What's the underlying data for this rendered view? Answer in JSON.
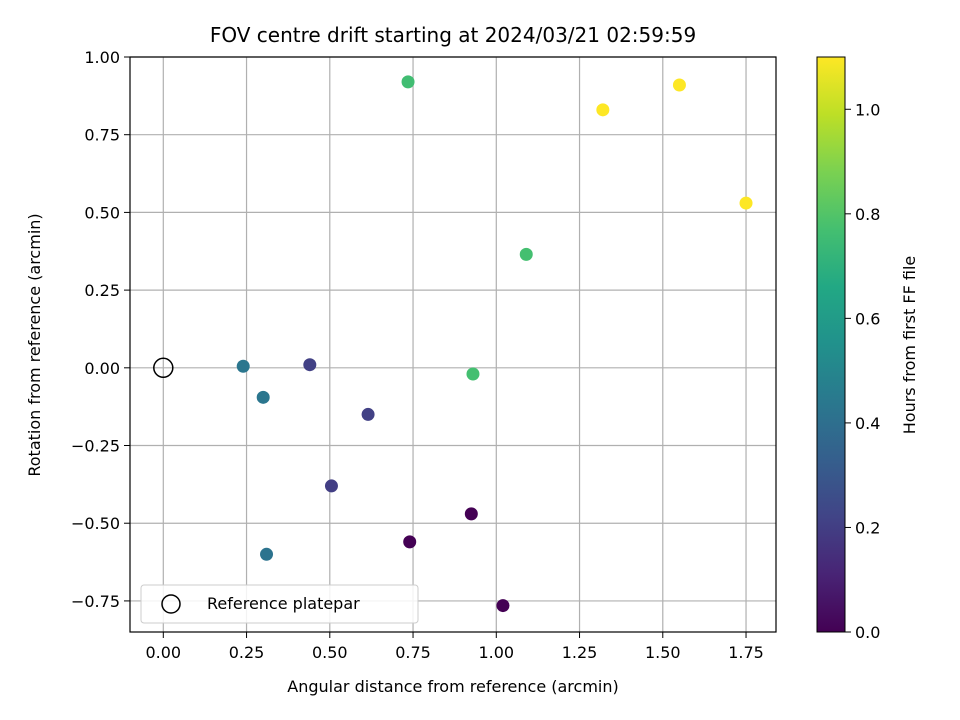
{
  "chart_data": {
    "type": "scatter",
    "title": "FOV centre drift starting at 2024/03/21 02:59:59",
    "xlabel": "Angular distance from reference (arcmin)",
    "ylabel": "Rotation from reference (arcmin)",
    "xlim": [
      -0.1,
      1.84
    ],
    "ylim": [
      -0.85,
      1.0
    ],
    "xticks": [
      "0.00",
      "0.25",
      "0.50",
      "0.75",
      "1.00",
      "1.25",
      "1.50",
      "1.75"
    ],
    "xtick_values": [
      0.0,
      0.25,
      0.5,
      0.75,
      1.0,
      1.25,
      1.5,
      1.75
    ],
    "yticks": [
      "1.00",
      "0.75",
      "0.50",
      "0.25",
      "0.00",
      "−0.25",
      "−0.50",
      "−0.75"
    ],
    "ytick_values": [
      1.0,
      0.75,
      0.5,
      0.25,
      0.0,
      -0.25,
      -0.5,
      -0.75
    ],
    "grid": true,
    "colormap": "viridis",
    "points": [
      {
        "x": 0.74,
        "y": -0.56,
        "hours": 0.0
      },
      {
        "x": 0.925,
        "y": -0.47,
        "hours": 0.0
      },
      {
        "x": 1.02,
        "y": -0.765,
        "hours": 0.0
      },
      {
        "x": 0.505,
        "y": -0.38,
        "hours": 0.2
      },
      {
        "x": 0.615,
        "y": -0.15,
        "hours": 0.21
      },
      {
        "x": 0.44,
        "y": 0.01,
        "hours": 0.21
      },
      {
        "x": 0.3,
        "y": -0.095,
        "hours": 0.43
      },
      {
        "x": 0.24,
        "y": 0.005,
        "hours": 0.43
      },
      {
        "x": 0.31,
        "y": -0.6,
        "hours": 0.42
      },
      {
        "x": 0.735,
        "y": 0.92,
        "hours": 0.76
      },
      {
        "x": 1.09,
        "y": 0.365,
        "hours": 0.77
      },
      {
        "x": 0.93,
        "y": -0.02,
        "hours": 0.77
      },
      {
        "x": 1.32,
        "y": 0.83,
        "hours": 1.1
      },
      {
        "x": 1.55,
        "y": 0.91,
        "hours": 1.1
      },
      {
        "x": 1.75,
        "y": 0.53,
        "hours": 1.1
      }
    ],
    "reference_point": {
      "x": 0.0,
      "y": 0.0
    },
    "legend": {
      "entries": [
        "Reference platepar"
      ],
      "placement": "lower-left"
    },
    "colorbar": {
      "label": "Hours from first FF file",
      "range": [
        0.0,
        1.1
      ],
      "ticks": [
        "0.0",
        "0.2",
        "0.4",
        "0.6",
        "0.8",
        "1.0"
      ],
      "tick_values": [
        0.0,
        0.2,
        0.4,
        0.6,
        0.8,
        1.0
      ]
    }
  }
}
